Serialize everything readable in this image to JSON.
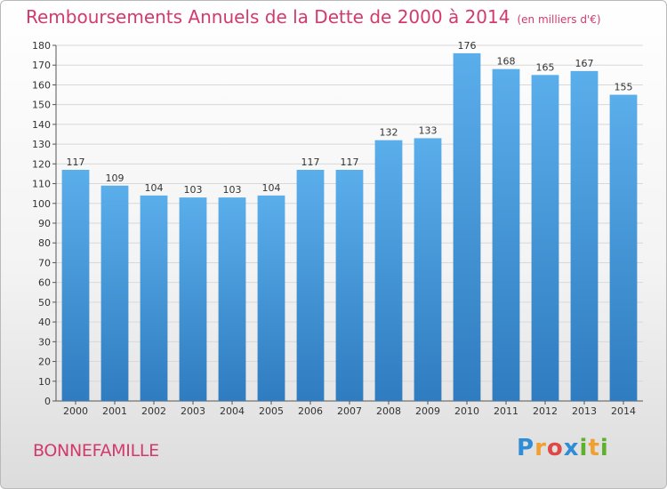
{
  "title": "Remboursements Annuels de la Dette de 2000 à 2014",
  "subtitle": "(en milliers d'€)",
  "place": "BONNEFAMILLE",
  "logo": "Proxiti",
  "colors": {
    "bar": "#4a9fe0",
    "title": "#d23a6b"
  },
  "chart_data": {
    "type": "bar",
    "title": "Remboursements Annuels de la Dette de 2000 à 2014",
    "ylabel": "en milliers d'€",
    "xlabel": "",
    "ylim": [
      0,
      180
    ],
    "yticks": [
      0,
      10,
      20,
      30,
      40,
      50,
      60,
      70,
      80,
      90,
      100,
      110,
      120,
      130,
      140,
      150,
      160,
      170,
      180
    ],
    "grid": true,
    "categories": [
      "2000",
      "2001",
      "2002",
      "2003",
      "2004",
      "2005",
      "2006",
      "2007",
      "2008",
      "2009",
      "2010",
      "2011",
      "2012",
      "2013",
      "2014"
    ],
    "values": [
      117,
      109,
      104,
      103,
      103,
      104,
      117,
      117,
      132,
      133,
      176,
      168,
      165,
      167,
      155
    ]
  }
}
